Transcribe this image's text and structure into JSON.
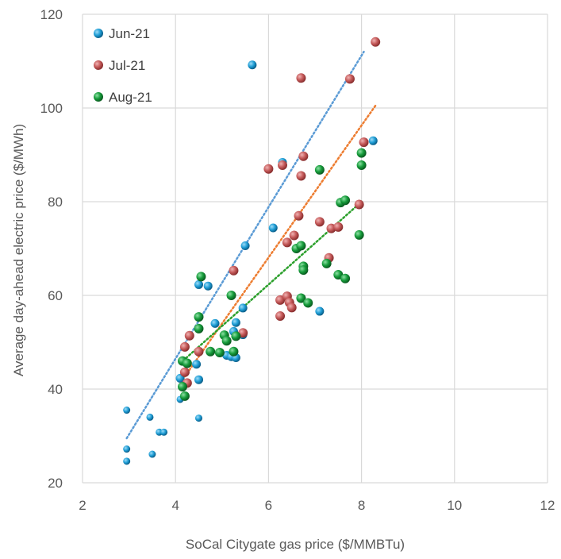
{
  "chart_data": {
    "type": "scatter",
    "xlabel": "SoCal Citygate  gas price ($/MMBTu)",
    "ylabel": "Average day-ahead electric price ($/MWh)",
    "xlim": [
      2,
      12
    ],
    "ylim": [
      20,
      120
    ],
    "xticks": [
      2,
      4,
      6,
      8,
      10,
      12
    ],
    "yticks": [
      20,
      40,
      60,
      80,
      100,
      120
    ],
    "grid": true,
    "legend": "top-left",
    "series": [
      {
        "name": "Jun-21",
        "color": "#1f9ed6",
        "trend": [
          [
            2.95,
            29.5
          ],
          [
            8.05,
            112
          ]
        ],
        "points": [
          [
            2.95,
            35.5
          ],
          [
            2.95,
            27.2
          ],
          [
            2.95,
            24.6
          ],
          [
            3.45,
            34.0
          ],
          [
            3.5,
            26.1
          ],
          [
            3.65,
            30.8
          ],
          [
            3.75,
            30.8
          ],
          [
            4.1,
            42.3
          ],
          [
            4.1,
            37.8
          ],
          [
            4.45,
            45.3
          ],
          [
            4.5,
            42.0
          ],
          [
            4.5,
            33.8
          ],
          [
            4.5,
            62.3
          ],
          [
            4.7,
            62.0
          ],
          [
            4.85,
            54.0
          ],
          [
            5.1,
            47.2
          ],
          [
            5.2,
            46.9
          ],
          [
            5.25,
            52.3
          ],
          [
            5.3,
            54.2
          ],
          [
            5.3,
            46.7
          ],
          [
            5.45,
            57.3
          ],
          [
            5.45,
            51.6
          ],
          [
            5.5,
            70.6
          ],
          [
            5.65,
            109.2
          ],
          [
            6.1,
            74.4
          ],
          [
            6.3,
            88.4
          ],
          [
            7.1,
            56.6
          ],
          [
            8.25,
            93.0
          ]
        ]
      },
      {
        "name": "Jul-21",
        "color": "#c55a5a",
        "trend": [
          [
            4.15,
            42
          ],
          [
            8.3,
            100.5
          ]
        ],
        "points": [
          [
            4.2,
            49.0
          ],
          [
            4.2,
            43.6
          ],
          [
            4.25,
            41.3
          ],
          [
            4.3,
            51.4
          ],
          [
            4.5,
            48.0
          ],
          [
            5.25,
            65.3
          ],
          [
            5.45,
            52.0
          ],
          [
            6.0,
            87.0
          ],
          [
            6.25,
            55.6
          ],
          [
            6.25,
            59.0
          ],
          [
            6.3,
            87.8
          ],
          [
            6.4,
            71.3
          ],
          [
            6.4,
            59.8
          ],
          [
            6.45,
            58.5
          ],
          [
            6.5,
            57.4
          ],
          [
            6.55,
            72.8
          ],
          [
            6.65,
            77.0
          ],
          [
            6.7,
            85.5
          ],
          [
            6.7,
            106.4
          ],
          [
            6.75,
            89.7
          ],
          [
            7.1,
            75.7
          ],
          [
            7.3,
            68.0
          ],
          [
            7.35,
            74.3
          ],
          [
            7.5,
            74.6
          ],
          [
            7.75,
            106.2
          ],
          [
            7.95,
            79.4
          ],
          [
            8.05,
            92.7
          ],
          [
            8.3,
            114.1
          ]
        ]
      },
      {
        "name": "Aug-21",
        "color": "#169c3b",
        "trend": [
          [
            4.1,
            45.5
          ],
          [
            8.0,
            80
          ]
        ],
        "points": [
          [
            4.15,
            46.0
          ],
          [
            4.15,
            40.5
          ],
          [
            4.2,
            38.5
          ],
          [
            4.25,
            45.5
          ],
          [
            4.5,
            55.4
          ],
          [
            4.5,
            52.9
          ],
          [
            4.55,
            64.0
          ],
          [
            4.75,
            48.0
          ],
          [
            4.95,
            47.8
          ],
          [
            5.05,
            51.5
          ],
          [
            5.1,
            50.3
          ],
          [
            5.2,
            60.0
          ],
          [
            5.25,
            48.0
          ],
          [
            5.3,
            51.3
          ],
          [
            6.6,
            70.0
          ],
          [
            6.7,
            70.6
          ],
          [
            6.7,
            59.4
          ],
          [
            6.75,
            66.2
          ],
          [
            6.75,
            65.4
          ],
          [
            6.85,
            58.4
          ],
          [
            7.1,
            86.8
          ],
          [
            7.25,
            66.8
          ],
          [
            7.5,
            64.4
          ],
          [
            7.55,
            79.8
          ],
          [
            7.65,
            80.3
          ],
          [
            7.65,
            63.6
          ],
          [
            7.95,
            72.9
          ],
          [
            8.0,
            87.8
          ],
          [
            8.0,
            90.4
          ]
        ]
      }
    ]
  }
}
